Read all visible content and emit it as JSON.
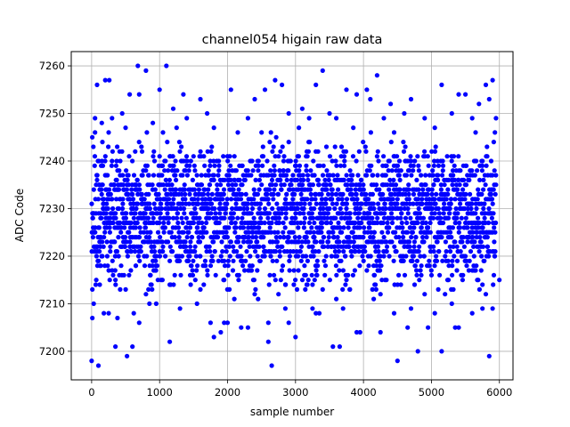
{
  "chart_data": {
    "type": "scatter",
    "title": "channel054 higain raw data",
    "xlabel": "sample number",
    "ylabel": "ADC Code",
    "xlim": [
      -300,
      6200
    ],
    "ylim": [
      7194,
      7263
    ],
    "xticks": [
      0,
      1000,
      2000,
      3000,
      4000,
      5000,
      6000
    ],
    "yticks": [
      7200,
      7210,
      7220,
      7230,
      7240,
      7250,
      7260
    ],
    "grid": true,
    "marker_color": "#0000ff",
    "series": [
      {
        "points": [
          [
            0,
            7198
          ],
          [
            100,
            7197
          ],
          [
            680,
            7260
          ],
          [
            1100,
            7260
          ],
          [
            800,
            7259
          ],
          [
            3400,
            7259
          ],
          [
            200,
            7257
          ],
          [
            260,
            7257
          ],
          [
            4200,
            7258
          ],
          [
            5900,
            7257
          ],
          [
            80,
            7256
          ],
          [
            2800,
            7256
          ],
          [
            5150,
            7256
          ],
          [
            5800,
            7256
          ],
          [
            1000,
            7255
          ],
          [
            2050,
            7255
          ],
          [
            2550,
            7255
          ],
          [
            3750,
            7255
          ],
          [
            4050,
            7255
          ],
          [
            560,
            7254
          ],
          [
            700,
            7254
          ],
          [
            1350,
            7254
          ],
          [
            3900,
            7254
          ],
          [
            5400,
            7254
          ],
          [
            5500,
            7254
          ],
          [
            2400,
            7253
          ],
          [
            1600,
            7253
          ],
          [
            4100,
            7253
          ],
          [
            4700,
            7253
          ],
          [
            5850,
            7253
          ],
          [
            3300,
            7256
          ],
          [
            2700,
            7257
          ],
          [
            4400,
            7252
          ],
          [
            5700,
            7252
          ],
          [
            1200,
            7251
          ],
          [
            3100,
            7251
          ],
          [
            2600,
            7202
          ],
          [
            1150,
            7202
          ],
          [
            350,
            7201
          ],
          [
            600,
            7201
          ],
          [
            3550,
            7201
          ],
          [
            3650,
            7201
          ],
          [
            520,
            7199
          ],
          [
            5850,
            7199
          ],
          [
            4800,
            7200
          ],
          [
            5150,
            7200
          ],
          [
            2650,
            7197
          ],
          [
            4500,
            7198
          ],
          [
            3950,
            7204
          ],
          [
            3900,
            7204
          ],
          [
            1900,
            7204
          ],
          [
            1800,
            7203
          ],
          [
            3000,
            7203
          ],
          [
            4250,
            7204
          ],
          [
            4650,
            7205
          ],
          [
            4950,
            7205
          ],
          [
            5350,
            7205
          ],
          [
            5400,
            7205
          ],
          [
            2200,
            7205
          ],
          [
            2300,
            7205
          ],
          [
            700,
            7206
          ],
          [
            1750,
            7206
          ],
          [
            1950,
            7206
          ],
          [
            2000,
            7206
          ],
          [
            2600,
            7206
          ],
          [
            2900,
            7206
          ],
          [
            380,
            7207
          ],
          [
            620,
            7208
          ],
          [
            180,
            7208
          ],
          [
            250,
            7208
          ],
          [
            3300,
            7208
          ],
          [
            3350,
            7208
          ],
          [
            4450,
            7208
          ],
          [
            5050,
            7208
          ],
          [
            5600,
            7208
          ],
          [
            5750,
            7209
          ],
          [
            5900,
            7209
          ],
          [
            1300,
            7209
          ],
          [
            2850,
            7209
          ],
          [
            3250,
            7209
          ],
          [
            3700,
            7209
          ],
          [
            4700,
            7209
          ],
          [
            5300,
            7210
          ],
          [
            850,
            7210
          ],
          [
            950,
            7210
          ],
          [
            1550,
            7210
          ],
          [
            2100,
            7211
          ],
          [
            2450,
            7211
          ],
          [
            3600,
            7211
          ],
          [
            4150,
            7211
          ],
          [
            4900,
            7212
          ],
          [
            5200,
            7212
          ],
          [
            5800,
            7212
          ],
          [
            10,
            7213
          ],
          [
            120,
            7214
          ],
          [
            420,
            7213
          ],
          [
            10,
            7207
          ],
          [
            30,
            7210
          ],
          [
            2750,
            7212
          ],
          [
            3800,
            7213
          ],
          [
            1650,
            7214
          ],
          [
            6000,
            7215
          ],
          [
            50,
            7249
          ],
          [
            150,
            7248
          ],
          [
            300,
            7249
          ],
          [
            450,
            7250
          ],
          [
            900,
            7248
          ],
          [
            1400,
            7249
          ],
          [
            1700,
            7250
          ],
          [
            2300,
            7249
          ],
          [
            2900,
            7250
          ],
          [
            3200,
            7249
          ],
          [
            3500,
            7250
          ],
          [
            3600,
            7249
          ],
          [
            4300,
            7249
          ],
          [
            4600,
            7250
          ],
          [
            4900,
            7249
          ],
          [
            5300,
            7250
          ],
          [
            5600,
            7249
          ],
          [
            5950,
            7249
          ],
          [
            500,
            7247
          ],
          [
            1050,
            7246
          ],
          [
            1800,
            7247
          ],
          [
            2500,
            7246
          ],
          [
            3050,
            7247
          ],
          [
            3850,
            7247
          ],
          [
            4450,
            7246
          ],
          [
            5050,
            7247
          ],
          [
            5650,
            7246
          ],
          [
            250,
            7246
          ],
          [
            1250,
            7247
          ],
          [
            2150,
            7246
          ],
          [
            650,
            7218
          ],
          [
            1450,
            7216
          ],
          [
            2250,
            7217
          ],
          [
            3150,
            7216
          ],
          [
            4050,
            7217
          ],
          [
            4850,
            7216
          ],
          [
            5550,
            7217
          ],
          [
            350,
            7215
          ],
          [
            1150,
            7214
          ],
          [
            1950,
            7215
          ],
          [
            2850,
            7214
          ],
          [
            3750,
            7215
          ],
          [
            4550,
            7214
          ],
          [
            5250,
            7215
          ],
          [
            5750,
            7214
          ],
          [
            800,
            7212
          ],
          [
            1600,
            7213
          ],
          [
            2400,
            7212
          ],
          [
            3400,
            7213
          ],
          [
            4250,
            7212
          ],
          [
            5100,
            7213
          ]
        ],
        "dense_band": {
          "x_range": [
            0,
            5950
          ],
          "y_range": [
            7213,
            7246
          ],
          "center": 7229,
          "spread": 7
        }
      }
    ]
  }
}
